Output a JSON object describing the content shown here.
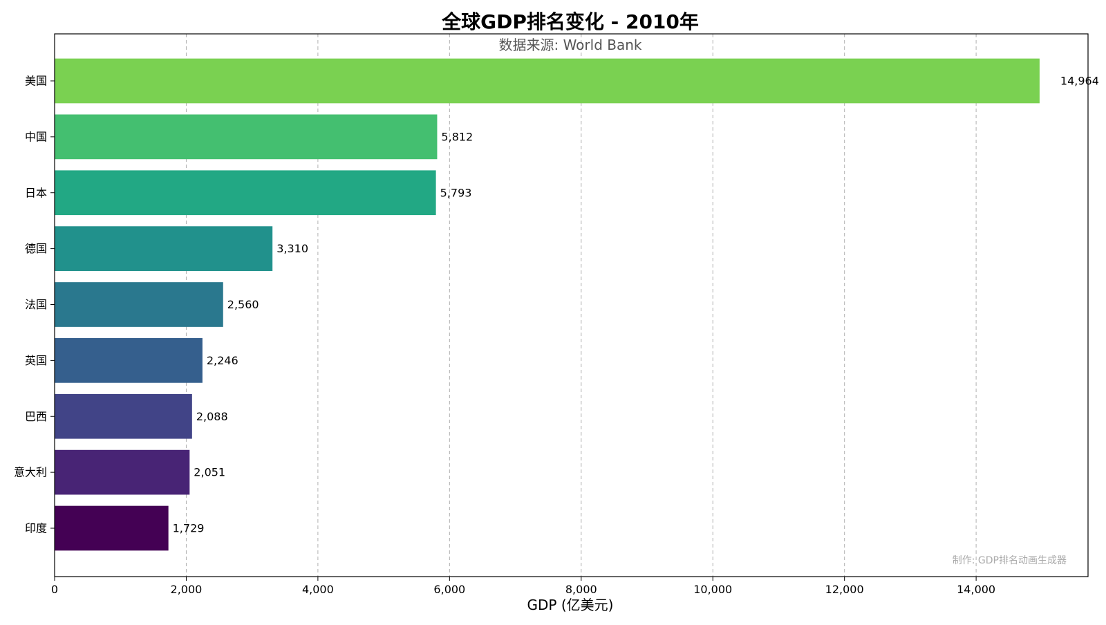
{
  "chart_data": {
    "type": "bar",
    "orientation": "horizontal",
    "title": "全球GDP排名变化 - 2010年",
    "subtitle": "数据来源: World Bank",
    "xlabel": "GDP (亿美元)",
    "ylabel": "",
    "xlim": [
      0,
      15700
    ],
    "xticks": [
      0,
      2000,
      4000,
      6000,
      8000,
      10000,
      12000,
      14000
    ],
    "xtick_labels": [
      "0",
      "2,000",
      "4,000",
      "6,000",
      "8,000",
      "10,000",
      "12,000",
      "14,000"
    ],
    "grid": "vertical-dashed",
    "categories": [
      "美国",
      "中国",
      "日本",
      "德国",
      "法国",
      "英国",
      "巴西",
      "意大利",
      "印度"
    ],
    "values": [
      14964,
      5812,
      5793,
      3310,
      2560,
      2246,
      2088,
      2051,
      1729
    ],
    "value_labels": [
      "14,964",
      "5,812",
      "5,793",
      "3,310",
      "2,560",
      "2,246",
      "2,088",
      "2,051",
      "1,729"
    ],
    "colors": [
      "#7ad151",
      "#44bf70",
      "#22a884",
      "#21918c",
      "#2a788e",
      "#355f8d",
      "#414487",
      "#482475",
      "#440154"
    ],
    "credit": "制作: GDP排名动画生成器"
  }
}
